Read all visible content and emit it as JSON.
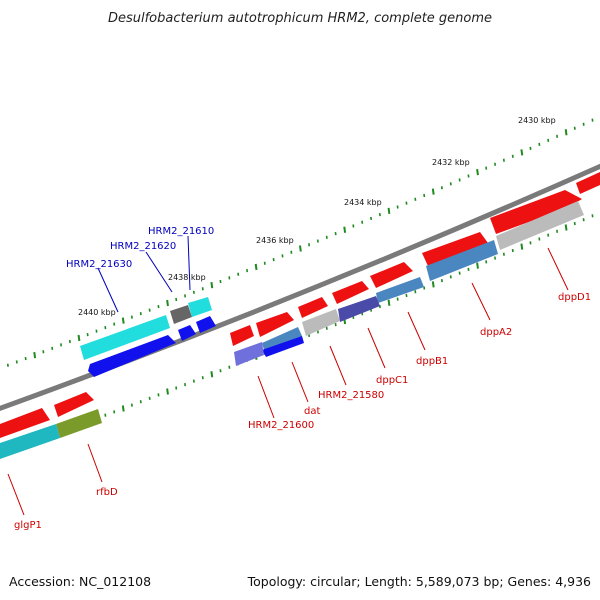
{
  "title": "Desulfobacterium autotrophicum HRM2, complete genome",
  "footer": {
    "accession": "Accession: NC_012108",
    "summary": "Topology: circular; Length: 5,589,073 bp; Genes: 4,936"
  },
  "scale_labels": [
    "2430 kbp",
    "2432 kbp",
    "2434 kbp",
    "2436 kbp",
    "2438 kbp",
    "2440 kbp"
  ],
  "gene_labels_top": [
    "HRM2_21610",
    "HRM2_21620",
    "HRM2_21630"
  ],
  "gene_labels_bottom": [
    "dppD1",
    "dppA2",
    "dppB1",
    "dppC1",
    "HRM2_21580",
    "dat",
    "HRM2_21600",
    "rfbD",
    "glgP1"
  ],
  "colors": {
    "backbone": "#7a7a7a",
    "tick": "#1f8a1f",
    "gene_red": "#ee1111",
    "gene_cyan": "#22dddd",
    "gene_blue": "#1111ee",
    "gene_gray": "#bbbbbb",
    "gene_steel": "#4a86c0",
    "gene_slate": "#4a4aa8",
    "gene_lavender": "#7070dd",
    "gene_teal": "#1fb8c0",
    "gene_olive": "#7a9a2a",
    "gene_darkgray": "#666666",
    "label_red": "#cc0000",
    "label_blue": "#0000bb"
  }
}
